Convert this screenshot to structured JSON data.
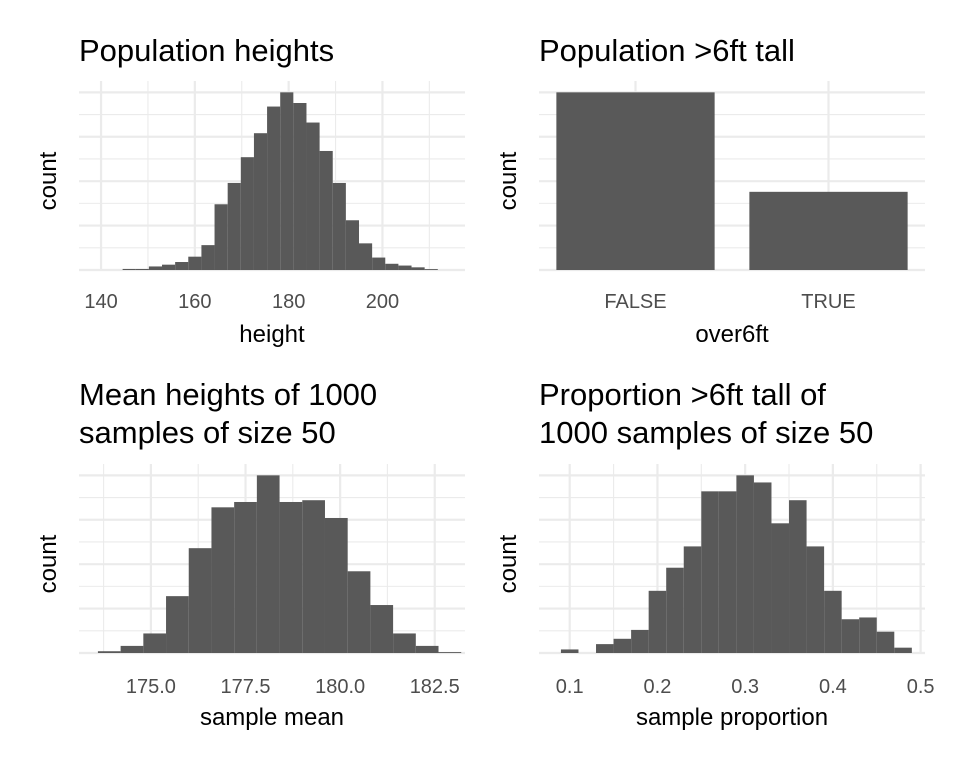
{
  "chart_data": [
    {
      "type": "bar",
      "title": [
        "Population heights"
      ],
      "xlabel": "height",
      "ylabel": "count",
      "xlim": [
        135.3,
        217.6
      ],
      "ylim": [
        0,
        1.0
      ],
      "x_ticks": [
        140,
        160,
        180,
        200
      ],
      "x_tick_labels": [
        "140",
        "160",
        "180",
        "200"
      ],
      "show_y_tick_labels": false,
      "bin_width": 2.8,
      "grid": true,
      "bins": [
        {
          "x0": 144.6,
          "x1": 147.4,
          "value": 0.006
        },
        {
          "x0": 147.4,
          "x1": 150.2,
          "value": 0.006
        },
        {
          "x0": 150.2,
          "x1": 153.0,
          "value": 0.02
        },
        {
          "x0": 153.0,
          "x1": 155.8,
          "value": 0.03
        },
        {
          "x0": 155.8,
          "x1": 158.6,
          "value": 0.045
        },
        {
          "x0": 158.6,
          "x1": 161.4,
          "value": 0.075
        },
        {
          "x0": 161.4,
          "x1": 164.2,
          "value": 0.14
        },
        {
          "x0": 164.2,
          "x1": 167.0,
          "value": 0.37
        },
        {
          "x0": 167.0,
          "x1": 169.8,
          "value": 0.49
        },
        {
          "x0": 169.8,
          "x1": 172.6,
          "value": 0.635
        },
        {
          "x0": 172.6,
          "x1": 175.4,
          "value": 0.77
        },
        {
          "x0": 175.4,
          "x1": 178.2,
          "value": 0.92
        },
        {
          "x0": 178.2,
          "x1": 181.0,
          "value": 1.0
        },
        {
          "x0": 181.0,
          "x1": 183.8,
          "value": 0.94
        },
        {
          "x0": 183.8,
          "x1": 186.6,
          "value": 0.83
        },
        {
          "x0": 186.6,
          "x1": 189.4,
          "value": 0.67
        },
        {
          "x0": 189.4,
          "x1": 192.2,
          "value": 0.49
        },
        {
          "x0": 192.2,
          "x1": 195.0,
          "value": 0.28
        },
        {
          "x0": 195.0,
          "x1": 197.8,
          "value": 0.15
        },
        {
          "x0": 197.8,
          "x1": 200.6,
          "value": 0.07
        },
        {
          "x0": 200.6,
          "x1": 203.4,
          "value": 0.035
        },
        {
          "x0": 203.4,
          "x1": 206.2,
          "value": 0.025
        },
        {
          "x0": 206.2,
          "x1": 209.0,
          "value": 0.015
        },
        {
          "x0": 209.0,
          "x1": 211.8,
          "value": 0.005
        }
      ]
    },
    {
      "type": "bar",
      "title": [
        "Population >6ft tall"
      ],
      "xlabel": "over6ft",
      "ylabel": "count",
      "categories": [
        "FALSE",
        "TRUE"
      ],
      "values": [
        1.0,
        0.44
      ],
      "ylim": [
        0,
        1.0
      ],
      "show_y_tick_labels": false,
      "grid": true
    },
    {
      "type": "bar",
      "title": [
        "Mean heights of 1000",
        "samples of size 50"
      ],
      "xlabel": "sample mean",
      "ylabel": "count",
      "xlim": [
        173.1,
        183.3
      ],
      "ylim": [
        0,
        1.0
      ],
      "x_ticks": [
        175.0,
        177.5,
        180.0,
        182.5
      ],
      "x_tick_labels": [
        "175.0",
        "177.5",
        "180.0",
        "182.5"
      ],
      "show_y_tick_labels": false,
      "bin_width": 0.6,
      "grid": true,
      "bins": [
        {
          "x0": 173.6,
          "x1": 174.2,
          "value": 0.01
        },
        {
          "x0": 174.2,
          "x1": 174.8,
          "value": 0.04
        },
        {
          "x0": 174.8,
          "x1": 175.4,
          "value": 0.11
        },
        {
          "x0": 175.4,
          "x1": 176.0,
          "value": 0.32
        },
        {
          "x0": 176.0,
          "x1": 176.6,
          "value": 0.59
        },
        {
          "x0": 176.6,
          "x1": 177.2,
          "value": 0.82
        },
        {
          "x0": 177.2,
          "x1": 177.8,
          "value": 0.85
        },
        {
          "x0": 177.8,
          "x1": 178.4,
          "value": 1.0
        },
        {
          "x0": 178.4,
          "x1": 179.0,
          "value": 0.85
        },
        {
          "x0": 179.0,
          "x1": 179.6,
          "value": 0.86
        },
        {
          "x0": 179.6,
          "x1": 180.2,
          "value": 0.76
        },
        {
          "x0": 180.2,
          "x1": 180.8,
          "value": 0.46
        },
        {
          "x0": 180.8,
          "x1": 181.4,
          "value": 0.27
        },
        {
          "x0": 181.4,
          "x1": 182.0,
          "value": 0.11
        },
        {
          "x0": 182.0,
          "x1": 182.6,
          "value": 0.04
        },
        {
          "x0": 182.6,
          "x1": 183.2,
          "value": 0.005
        }
      ]
    },
    {
      "type": "bar",
      "title": [
        "Proportion >6ft tall of",
        "1000 samples of size 50"
      ],
      "xlabel": "sample proportion",
      "ylabel": "count",
      "xlim": [
        0.065,
        0.505
      ],
      "ylim": [
        0,
        1.0
      ],
      "x_ticks": [
        0.1,
        0.2,
        0.3,
        0.4,
        0.5
      ],
      "x_tick_labels": [
        "0.1",
        "0.2",
        "0.3",
        "0.4",
        "0.5"
      ],
      "show_y_tick_labels": false,
      "bin_width": 0.02,
      "grid": true,
      "bins": [
        {
          "x0": 0.09,
          "x1": 0.11,
          "value": 0.02
        },
        {
          "x0": 0.11,
          "x1": 0.13,
          "value": 0.0
        },
        {
          "x0": 0.13,
          "x1": 0.15,
          "value": 0.05
        },
        {
          "x0": 0.15,
          "x1": 0.17,
          "value": 0.08
        },
        {
          "x0": 0.17,
          "x1": 0.19,
          "value": 0.13
        },
        {
          "x0": 0.19,
          "x1": 0.21,
          "value": 0.35
        },
        {
          "x0": 0.21,
          "x1": 0.23,
          "value": 0.48
        },
        {
          "x0": 0.23,
          "x1": 0.25,
          "value": 0.6
        },
        {
          "x0": 0.25,
          "x1": 0.27,
          "value": 0.91
        },
        {
          "x0": 0.27,
          "x1": 0.29,
          "value": 0.91
        },
        {
          "x0": 0.29,
          "x1": 0.31,
          "value": 1.0
        },
        {
          "x0": 0.31,
          "x1": 0.33,
          "value": 0.96
        },
        {
          "x0": 0.33,
          "x1": 0.35,
          "value": 0.73
        },
        {
          "x0": 0.35,
          "x1": 0.37,
          "value": 0.86
        },
        {
          "x0": 0.37,
          "x1": 0.39,
          "value": 0.6
        },
        {
          "x0": 0.39,
          "x1": 0.41,
          "value": 0.35
        },
        {
          "x0": 0.41,
          "x1": 0.43,
          "value": 0.19
        },
        {
          "x0": 0.43,
          "x1": 0.45,
          "value": 0.2
        },
        {
          "x0": 0.45,
          "x1": 0.47,
          "value": 0.12
        },
        {
          "x0": 0.47,
          "x1": 0.49,
          "value": 0.03
        }
      ]
    }
  ]
}
